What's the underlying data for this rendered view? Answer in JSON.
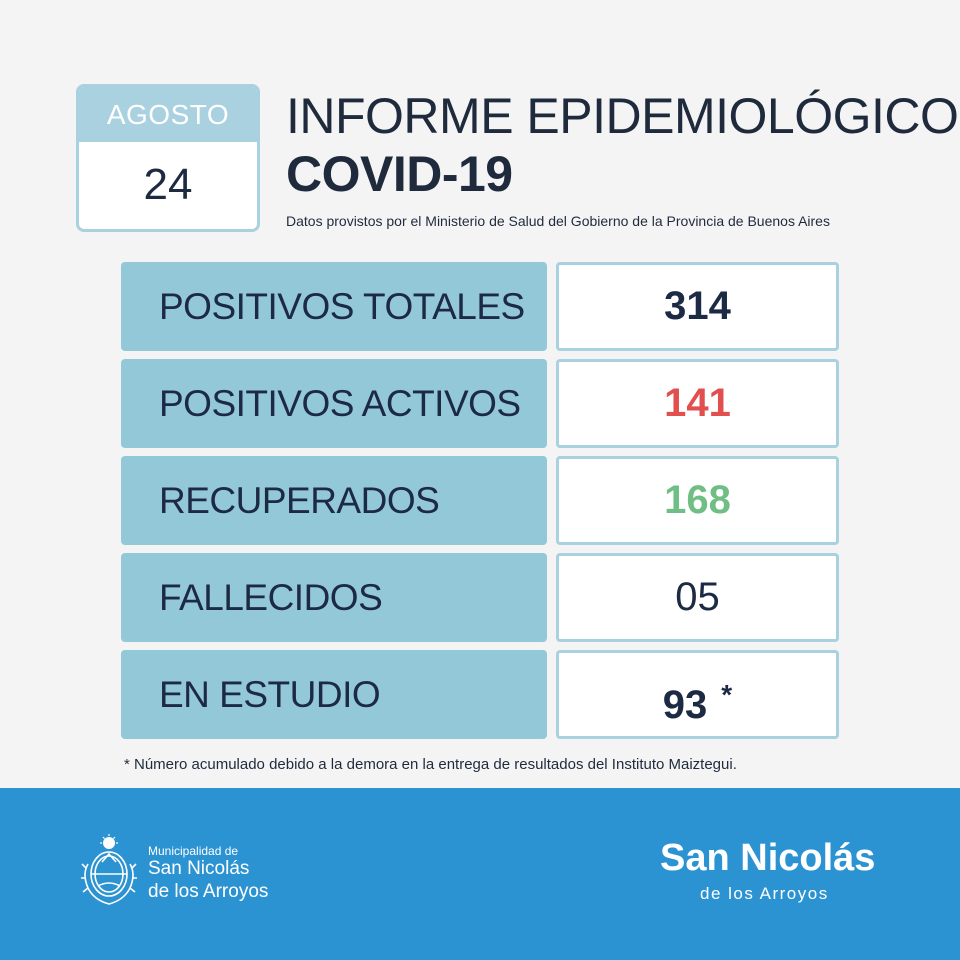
{
  "date": {
    "month": "AGOSTO",
    "day": "24"
  },
  "title": {
    "line1": "INFORME EPIDEMIOLÓGICO",
    "line2": "COVID-19"
  },
  "subtitle": "Datos provistos por el Ministerio de Salud del Gobierno de la Provincia de Buenos Aires",
  "stats": [
    {
      "label": "POSITIVOS TOTALES",
      "value": "314",
      "color": "#1d2a44"
    },
    {
      "label": "POSITIVOS ACTIVOS",
      "value": "141",
      "color": "#e24f4f"
    },
    {
      "label": "RECUPERADOS",
      "value": "168",
      "color": "#6fbf84"
    },
    {
      "label": "FALLECIDOS",
      "value": "05",
      "color": "#1d2a44"
    },
    {
      "label": "EN ESTUDIO",
      "value": "93",
      "marker": "*",
      "color": "#1d2a44"
    }
  ],
  "footnote": "* Número acumulado debido a la demora en la entrega de resultados del Instituto Maiztegui.",
  "footer": {
    "emblem_icon": "provincial-coat-of-arms-icon",
    "muni_small": "Municipalidad de",
    "muni_line1": "San Nicolás",
    "muni_line2": "de los Arroyos",
    "logo_main": "San Nicolás",
    "logo_sub": "de los Arroyos",
    "background": "#2c93d3"
  }
}
